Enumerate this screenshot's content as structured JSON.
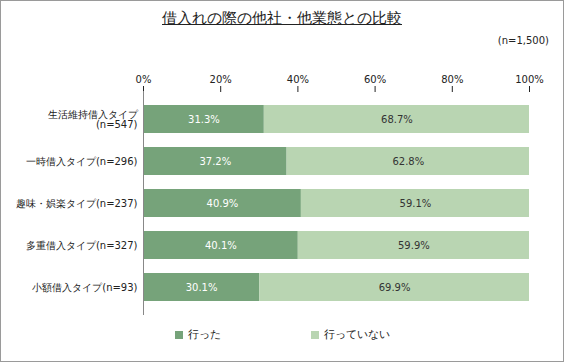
{
  "chart_data": {
    "type": "bar",
    "title": "借入れの際の他社・他業態との比較",
    "subtitle": "(n=1,500)",
    "categories": [
      "生活維持借入タイプ\n(n=547)",
      "一時借入タイプ(n=296)",
      "趣味・娯楽タイプ(n=237)",
      "多重借入タイプ(n=327)",
      "小額借入タイプ(n=93)"
    ],
    "series": [
      {
        "name": "行った",
        "color": "#76a37a",
        "values": [
          31.3,
          37.2,
          40.9,
          40.1,
          30.1
        ],
        "value_labels": [
          "31.3%",
          "37.2%",
          "40.9%",
          "40.1%",
          "30.1%"
        ]
      },
      {
        "name": "行っていない",
        "color": "#b9d5b2",
        "values": [
          68.7,
          62.8,
          59.1,
          59.9,
          69.9
        ],
        "value_labels": [
          "68.7%",
          "62.8%",
          "59.1%",
          "59.9%",
          "69.9%"
        ]
      }
    ],
    "xlim": [
      0,
      100
    ],
    "xticks": [
      {
        "value": 0,
        "label": "0%"
      },
      {
        "value": 20,
        "label": "20%"
      },
      {
        "value": 40,
        "label": "40%"
      },
      {
        "value": 60,
        "label": "60%"
      },
      {
        "value": 80,
        "label": "80%"
      },
      {
        "value": 100,
        "label": "100%"
      }
    ],
    "orientation": "horizontal",
    "stacked": true,
    "data_labels": true,
    "legend": "bottom",
    "grid": false
  }
}
